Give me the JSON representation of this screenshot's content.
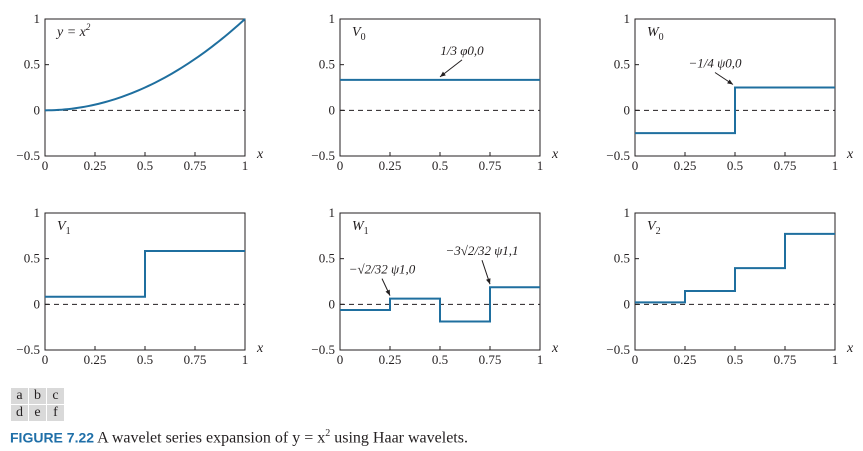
{
  "colors": {
    "curve": "#1f6f9f",
    "axis": "#231f20",
    "dashed": "#231f20"
  },
  "chart_data": [
    {
      "id": "a",
      "type": "line",
      "label": "y = x²",
      "function": "x^2",
      "xlim": [
        0,
        1
      ],
      "ylim": [
        -0.5,
        1
      ],
      "xticks": [
        "0",
        "0.25",
        "0.5",
        "0.75",
        "1"
      ],
      "yticks": [
        "−0.5",
        "0",
        "0.5",
        "1"
      ],
      "xlabel": "x",
      "annotations": []
    },
    {
      "id": "b",
      "type": "line",
      "label": "V0",
      "steps": [
        {
          "x0": 0,
          "x1": 1,
          "y": 0.3333
        }
      ],
      "xlim": [
        0,
        1
      ],
      "ylim": [
        -0.5,
        1
      ],
      "xticks": [
        "0",
        "0.25",
        "0.5",
        "0.75",
        "1"
      ],
      "yticks": [
        "−0.5",
        "0",
        "0.5",
        "1"
      ],
      "xlabel": "x",
      "annotations": [
        {
          "text": "1/3 φ0,0",
          "x": 0.5,
          "y": 0.3333
        }
      ]
    },
    {
      "id": "c",
      "type": "line",
      "label": "W0",
      "steps": [
        {
          "x0": 0,
          "x1": 0.5,
          "y": -0.25
        },
        {
          "x0": 0.5,
          "x1": 1,
          "y": 0.25
        }
      ],
      "xlim": [
        0,
        1
      ],
      "ylim": [
        -0.5,
        1
      ],
      "xticks": [
        "0",
        "0.25",
        "0.5",
        "0.75",
        "1"
      ],
      "yticks": [
        "−0.5",
        "0",
        "0.5",
        "1"
      ],
      "xlabel": "x",
      "annotations": [
        {
          "text": "−1/4 ψ0,0",
          "x": 0.5,
          "y": 0.25
        }
      ]
    },
    {
      "id": "d",
      "type": "line",
      "label": "V1",
      "steps": [
        {
          "x0": 0,
          "x1": 0.5,
          "y": 0.0833
        },
        {
          "x0": 0.5,
          "x1": 1,
          "y": 0.5833
        }
      ],
      "xlim": [
        0,
        1
      ],
      "ylim": [
        -0.5,
        1
      ],
      "xticks": [
        "0",
        "0.25",
        "0.5",
        "0.75",
        "1"
      ],
      "yticks": [
        "−0.5",
        "0",
        "0.5",
        "1"
      ],
      "xlabel": "x",
      "annotations": []
    },
    {
      "id": "e",
      "type": "line",
      "label": "W1",
      "steps": [
        {
          "x0": 0,
          "x1": 0.25,
          "y": -0.0625
        },
        {
          "x0": 0.25,
          "x1": 0.5,
          "y": 0.0625
        },
        {
          "x0": 0.5,
          "x1": 0.75,
          "y": -0.1875
        },
        {
          "x0": 0.75,
          "x1": 1,
          "y": 0.1875
        }
      ],
      "xlim": [
        0,
        1
      ],
      "ylim": [
        -0.5,
        1
      ],
      "xticks": [
        "0",
        "0.25",
        "0.5",
        "0.75",
        "1"
      ],
      "yticks": [
        "−0.5",
        "0",
        "0.5",
        "1"
      ],
      "xlabel": "x",
      "annotations": [
        {
          "text": "−√2/32 ψ1,0",
          "x": 0.25,
          "y": 0.0625
        },
        {
          "text": "−3√2/32 ψ1,1",
          "x": 0.75,
          "y": 0.1875
        }
      ]
    },
    {
      "id": "f",
      "type": "line",
      "label": "V2",
      "steps": [
        {
          "x0": 0,
          "x1": 0.25,
          "y": 0.0208
        },
        {
          "x0": 0.25,
          "x1": 0.5,
          "y": 0.1458
        },
        {
          "x0": 0.5,
          "x1": 0.75,
          "y": 0.3958
        },
        {
          "x0": 0.75,
          "x1": 1,
          "y": 0.7708
        }
      ],
      "xlim": [
        0,
        1
      ],
      "ylim": [
        -0.5,
        1
      ],
      "xticks": [
        "0",
        "0.25",
        "0.5",
        "0.75",
        "1"
      ],
      "yticks": [
        "−0.5",
        "0",
        "0.5",
        "1"
      ],
      "xlabel": "x",
      "annotations": []
    }
  ],
  "panel_letters": [
    "a",
    "b",
    "c",
    "d",
    "e",
    "f"
  ],
  "caption": {
    "figure_label": "FIGURE 7.22",
    "text_before": " A wavelet series expansion of y = x",
    "superscript": "2",
    "text_after": " using Haar wavelets."
  }
}
